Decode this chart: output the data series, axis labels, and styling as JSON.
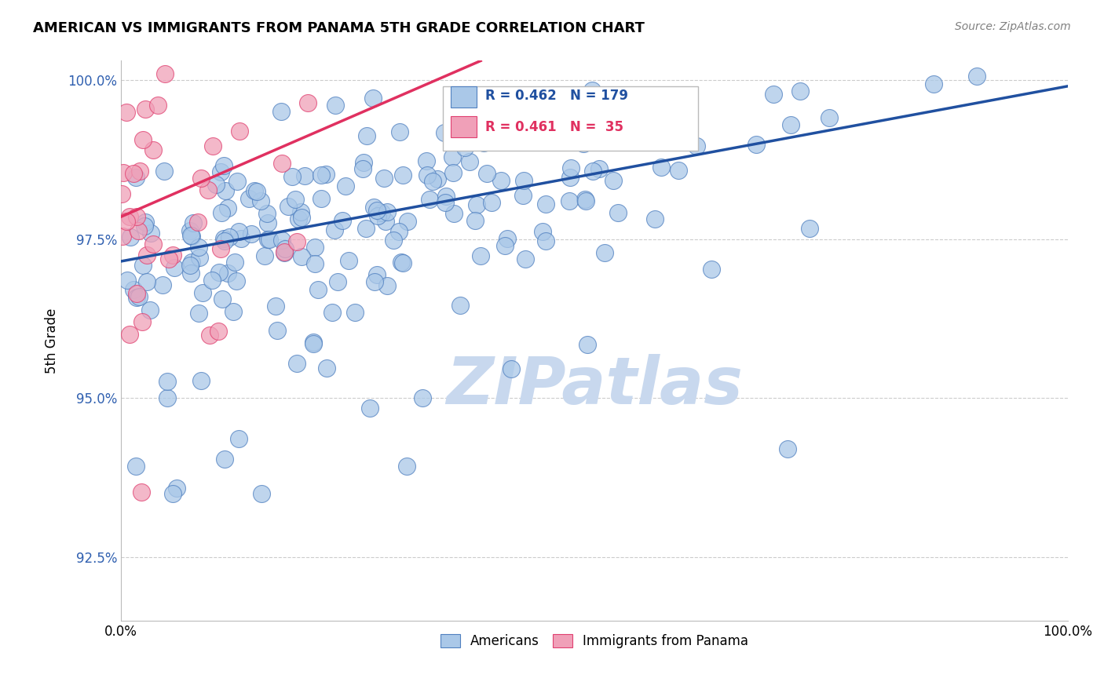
{
  "title": "AMERICAN VS IMMIGRANTS FROM PANAMA 5TH GRADE CORRELATION CHART",
  "source": "Source: ZipAtlas.com",
  "ylabel": "5th Grade",
  "xlim": [
    0.0,
    1.0
  ],
  "ylim": [
    0.915,
    1.003
  ],
  "yticks": [
    0.925,
    0.95,
    0.975,
    1.0
  ],
  "ytick_labels": [
    "92.5%",
    "95.0%",
    "97.5%",
    "100.0%"
  ],
  "xtick_labels": [
    "0.0%",
    "100.0%"
  ],
  "xtick_positions": [
    0.0,
    1.0
  ],
  "legend_R_blue": "R = 0.462",
  "legend_N_blue": "N = 179",
  "legend_R_pink": "R = 0.461",
  "legend_N_pink": "N =  35",
  "blue_color": "#aac8e8",
  "pink_color": "#f0a0b8",
  "blue_edge_color": "#5080c0",
  "pink_edge_color": "#e04070",
  "blue_line_color": "#2050a0",
  "pink_line_color": "#e03060",
  "watermark_color": "#c8d8ee",
  "blue_trendline_x": [
    0.0,
    1.0
  ],
  "blue_trendline_y": [
    0.9715,
    0.999
  ],
  "pink_trendline_x": [
    0.0,
    0.38
  ],
  "pink_trendline_y": [
    0.9785,
    1.003
  ]
}
